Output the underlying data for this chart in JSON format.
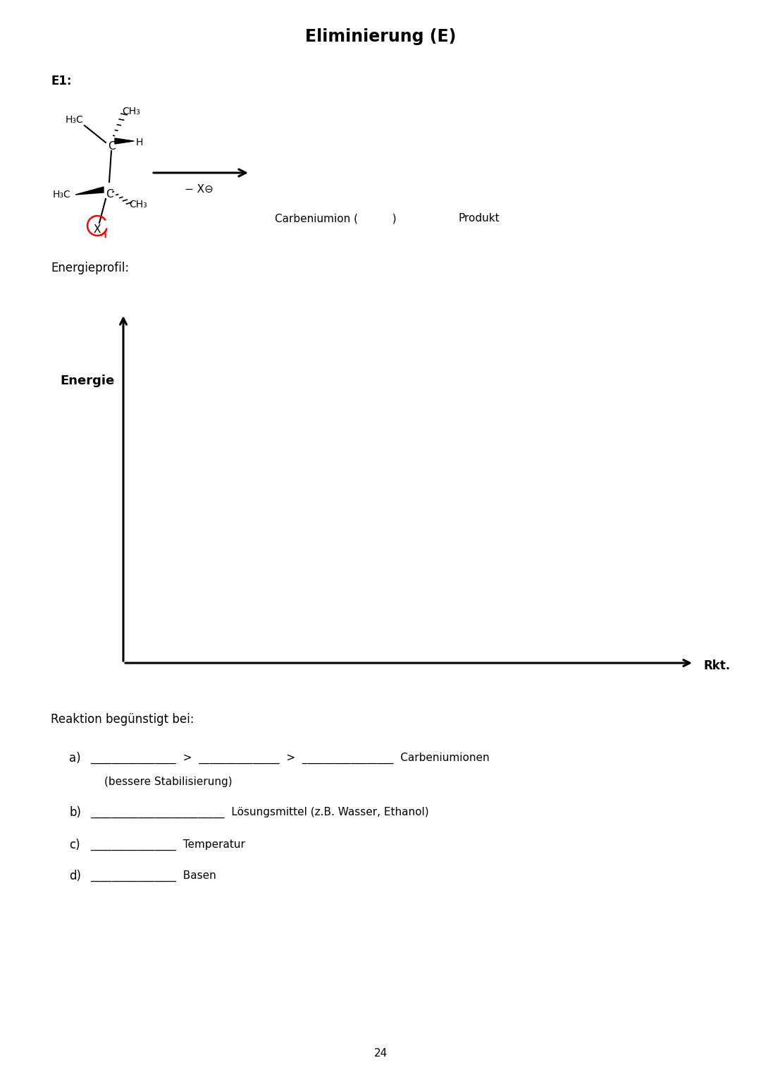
{
  "title": "Eliminierung (E)",
  "title_fontsize": 17,
  "title_fontweight": "bold",
  "bg_color": "#ffffff",
  "e1_label": "E1:",
  "energieprofil_label": "Energieprofil:",
  "energie_axis_label": "Energie",
  "rkt_axis_label": "Rkt.",
  "carbeniumion_text": "Carbeniumion (          )",
  "produkt_text": "Produkt",
  "reaktion_label": "Reaktion begünstigt bei:",
  "item_a_label": "a)",
  "item_a_blanks": "________________  >  _______________  >  _________________  Carbeniumionen",
  "item_a_sub": "(bessere Stabilisierung)",
  "item_b_label": "b)",
  "item_b_text": "_________________________  Lösungsmittel (z.B. Wasser, Ethanol)",
  "item_c_label": "c)",
  "item_c_text": "________________  Temperatur",
  "item_d_label": "d)",
  "item_d_text": "________________  Basen",
  "page_number": "24",
  "minus_x_text": "− X⊖"
}
